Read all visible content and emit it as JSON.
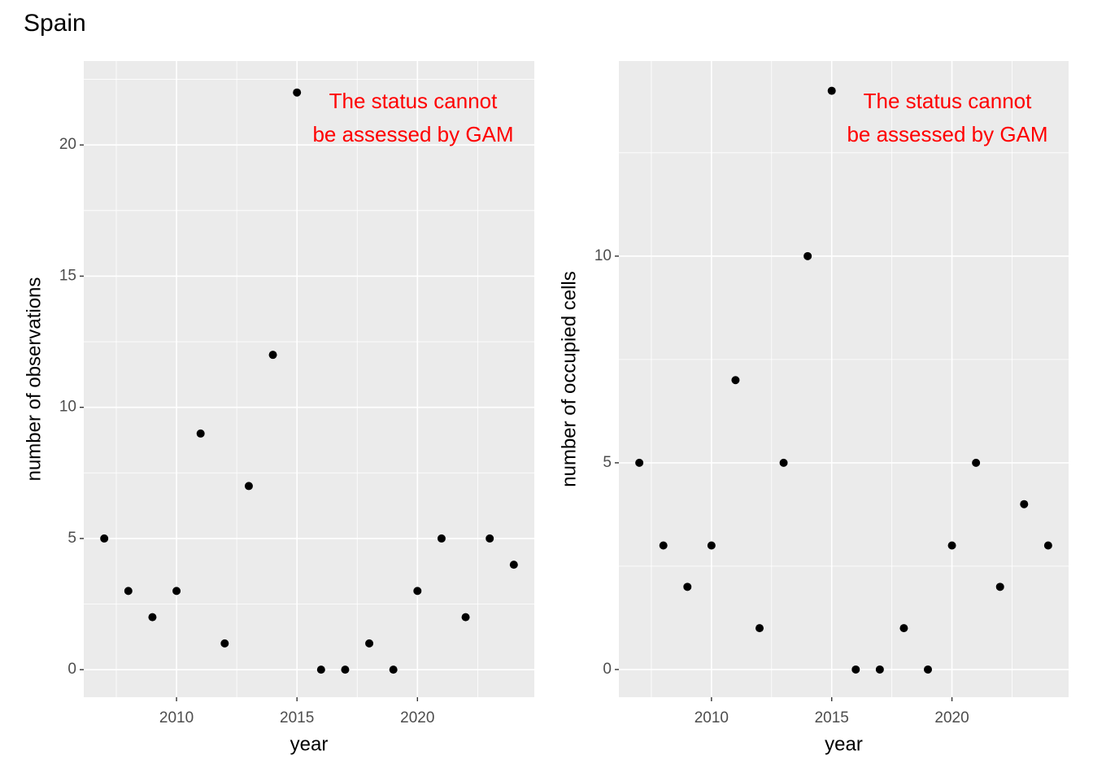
{
  "title": "Spain",
  "chart_data": [
    {
      "type": "scatter",
      "xlabel": "year",
      "ylabel": "number of observations",
      "annotation": [
        "The status cannot",
        "be assessed by GAM"
      ],
      "annotation_color": "#ff0000",
      "x": [
        2007,
        2008,
        2009,
        2010,
        2011,
        2012,
        2013,
        2014,
        2015,
        2016,
        2017,
        2018,
        2019,
        2020,
        2021,
        2022,
        2023,
        2024
      ],
      "values": [
        5,
        3,
        2,
        3,
        9,
        1,
        7,
        12,
        22,
        0,
        0,
        1,
        0,
        3,
        5,
        2,
        5,
        4
      ],
      "color": "#000000",
      "xlim": [
        2006.15,
        2024.85
      ],
      "ylim": [
        -1.05,
        23.2
      ],
      "xticks": [
        2010,
        2015,
        2020
      ],
      "yticks": [
        0,
        5,
        10,
        15,
        20
      ],
      "grid": true,
      "minor_grid": true
    },
    {
      "type": "scatter",
      "xlabel": "year",
      "ylabel": "number of occupied cells",
      "annotation": [
        "The status cannot",
        "be assessed by GAM"
      ],
      "annotation_color": "#ff0000",
      "x": [
        2007,
        2008,
        2009,
        2010,
        2011,
        2012,
        2013,
        2014,
        2015,
        2016,
        2017,
        2018,
        2019,
        2020,
        2021,
        2022,
        2023,
        2024
      ],
      "values": [
        5,
        3,
        2,
        3,
        7,
        1,
        5,
        10,
        14,
        0,
        0,
        1,
        0,
        3,
        5,
        2,
        4,
        3
      ],
      "color": "#000000",
      "xlim": [
        2006.15,
        2024.85
      ],
      "ylim": [
        -0.67,
        14.72
      ],
      "xticks": [
        2010,
        2015,
        2020
      ],
      "yticks": [
        0,
        5,
        10
      ],
      "grid": true,
      "minor_grid": true
    }
  ]
}
